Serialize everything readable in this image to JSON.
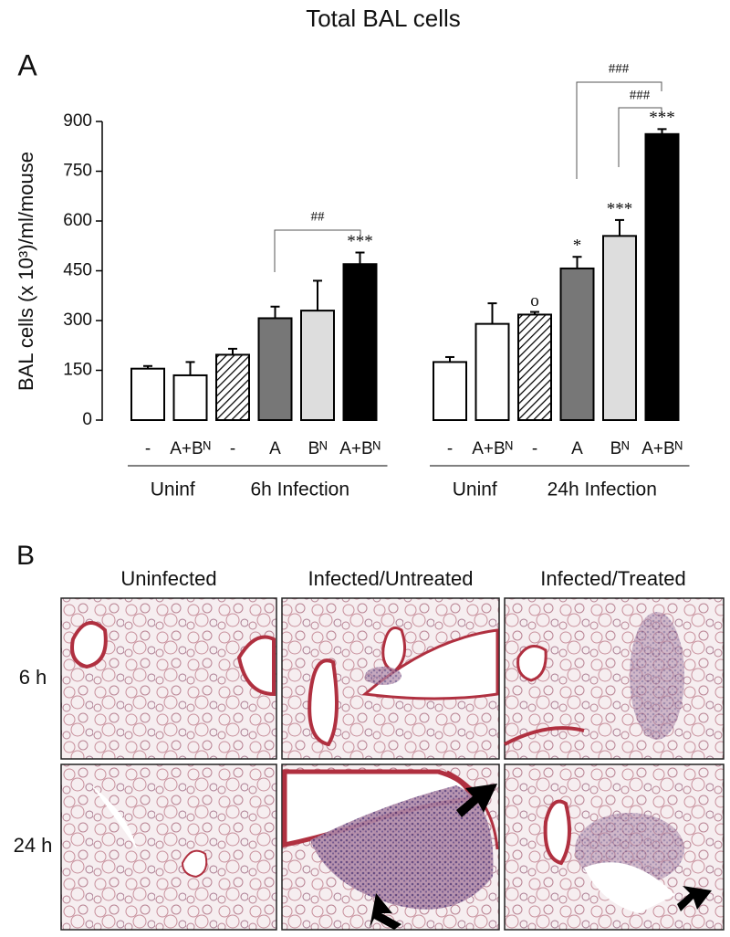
{
  "chart_data": {
    "type": "bar",
    "title": "Total BAL cells",
    "panel_label": "A",
    "y_label": "BAL cells (x 10³)/ml/mouse",
    "ylim": [
      0,
      900
    ],
    "yticks": [
      0,
      150,
      300,
      450,
      600,
      750,
      900
    ],
    "panels": [
      {
        "groups": [
          {
            "name": "Uninf",
            "categories": [
              "-",
              "A+Bᴺ"
            ],
            "values": [
              155,
              135
            ],
            "errors": [
              8,
              40
            ],
            "colors": [
              "#ffffff",
              "#ffffff"
            ],
            "stars": [
              null,
              null
            ]
          },
          {
            "name": "6h Infection",
            "categories": [
              "-",
              "A",
              "Bᴺ",
              "A+Bᴺ"
            ],
            "values": [
              197,
              307,
              330,
              470
            ],
            "errors": [
              18,
              35,
              90,
              35
            ],
            "colors": [
              "hatch",
              "#777777",
              "#dddddd",
              "#000000"
            ],
            "stars": [
              null,
              null,
              null,
              "***"
            ]
          }
        ]
      },
      {
        "groups": [
          {
            "name": "Uninf",
            "categories": [
              "-",
              "A+Bᴺ"
            ],
            "values": [
              175,
              290
            ],
            "errors": [
              15,
              62
            ],
            "colors": [
              "#ffffff",
              "#ffffff"
            ],
            "stars": [
              null,
              null
            ]
          },
          {
            "name": "24h Infection",
            "categories": [
              "-",
              "A",
              "Bᴺ",
              "A+Bᴺ"
            ],
            "values": [
              318,
              457,
              555,
              862
            ],
            "errors": [
              8,
              35,
              48,
              15
            ],
            "colors": [
              "hatch",
              "#777777",
              "#dddddd",
              "#000000"
            ],
            "stars": [
              "o",
              "*",
              "***",
              "***"
            ]
          }
        ]
      }
    ],
    "comparisons": [
      "##",
      "###",
      "###"
    ]
  },
  "panel_b": {
    "label": "B",
    "columns": [
      "Uninfected",
      "Infected/Untreated",
      "Infected/Treated"
    ],
    "rows": [
      "6 h",
      "24 h"
    ]
  }
}
